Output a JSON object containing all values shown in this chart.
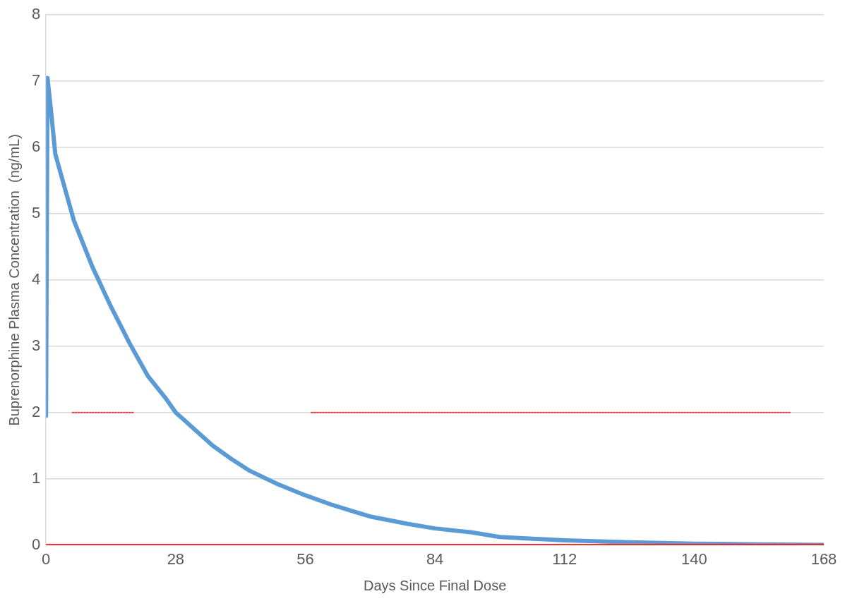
{
  "chart_data": {
    "type": "line",
    "xlabel": "Days Since Final Dose",
    "ylabel": "Buprenorphine Plasma Concentration  (ng/mL)",
    "xlim": [
      0,
      168
    ],
    "xticks": [
      0,
      28,
      56,
      84,
      112,
      140,
      168
    ],
    "ylim": [
      0,
      8
    ],
    "yticks": [
      0,
      1,
      2,
      3,
      4,
      5,
      6,
      7,
      8
    ],
    "grid": "y",
    "legend": false,
    "marker": "none",
    "series": [
      {
        "color": "#5b9bd5",
        "line_style": "solid",
        "x": [
          0,
          0.3,
          1,
          2,
          4,
          6,
          10,
          14,
          18,
          22,
          26,
          28,
          32,
          36,
          40,
          44,
          50,
          56,
          62,
          70,
          78,
          84,
          92,
          98,
          112,
          126,
          140,
          154,
          168
        ],
        "values": [
          1.95,
          7.05,
          6.6,
          5.9,
          5.4,
          4.9,
          4.2,
          3.6,
          3.05,
          2.55,
          2.2,
          2.0,
          1.75,
          1.5,
          1.3,
          1.12,
          0.92,
          0.75,
          0.6,
          0.43,
          0.32,
          0.25,
          0.19,
          0.12,
          0.07,
          0.04,
          0.02,
          0.01,
          0
        ]
      },
      {
        "color": "#e04040",
        "line_style": "dotted",
        "x": [
          5.7,
          19,
          38,
          57.3,
          160.9
        ],
        "values": [
          2,
          2,
          null,
          2,
          2
        ]
      },
      {
        "color": "#ff0000",
        "line_style": "solid",
        "x": [
          0,
          168
        ],
        "values": [
          0,
          0
        ]
      }
    ]
  }
}
